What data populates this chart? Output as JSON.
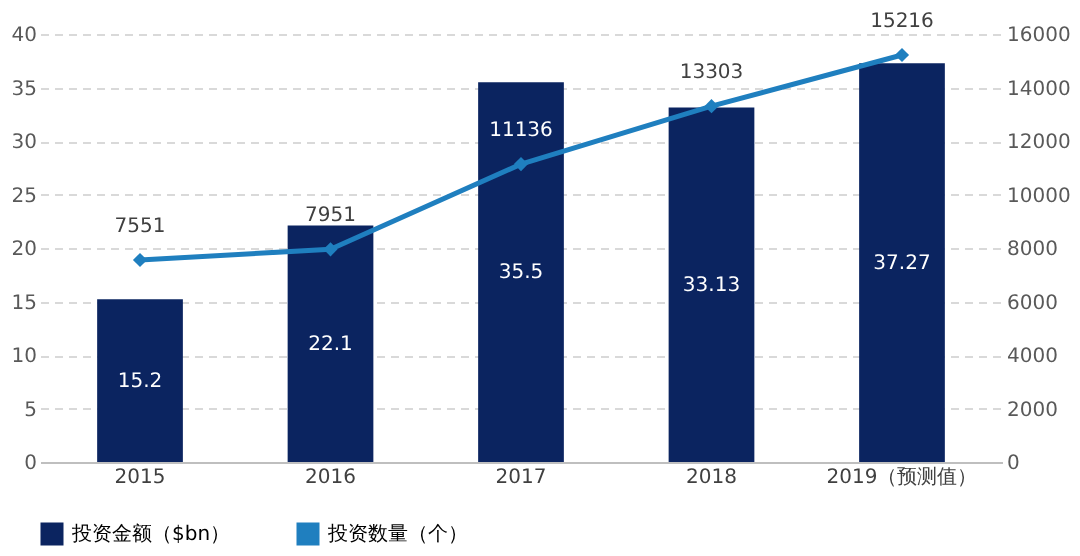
{
  "chart_data": {
    "type": "bar",
    "categories": [
      "2015",
      "2016",
      "2017",
      "2018",
      "2019（预测值）"
    ],
    "series": [
      {
        "name": "投资金额（$bn）",
        "type": "bar",
        "color": "#0b2460",
        "values": [
          15.2,
          22.1,
          35.5,
          33.13,
          37.27
        ]
      },
      {
        "name": "投资数量（个）",
        "type": "line",
        "axis": "y2",
        "color": "#1f7fbf",
        "values": [
          7551,
          7951,
          11136,
          13303,
          15216
        ]
      }
    ],
    "ylim": [
      0,
      40
    ],
    "yticks": [
      0,
      5,
      10,
      15,
      20,
      25,
      30,
      35,
      40
    ],
    "y2lim": [
      0,
      16000
    ],
    "y2ticks": [
      0,
      2000,
      4000,
      6000,
      8000,
      10000,
      12000,
      14000,
      16000
    ],
    "data_labels": true,
    "grid": "y",
    "legend": "bottom",
    "marker": "diamond",
    "line_style": "solid"
  }
}
